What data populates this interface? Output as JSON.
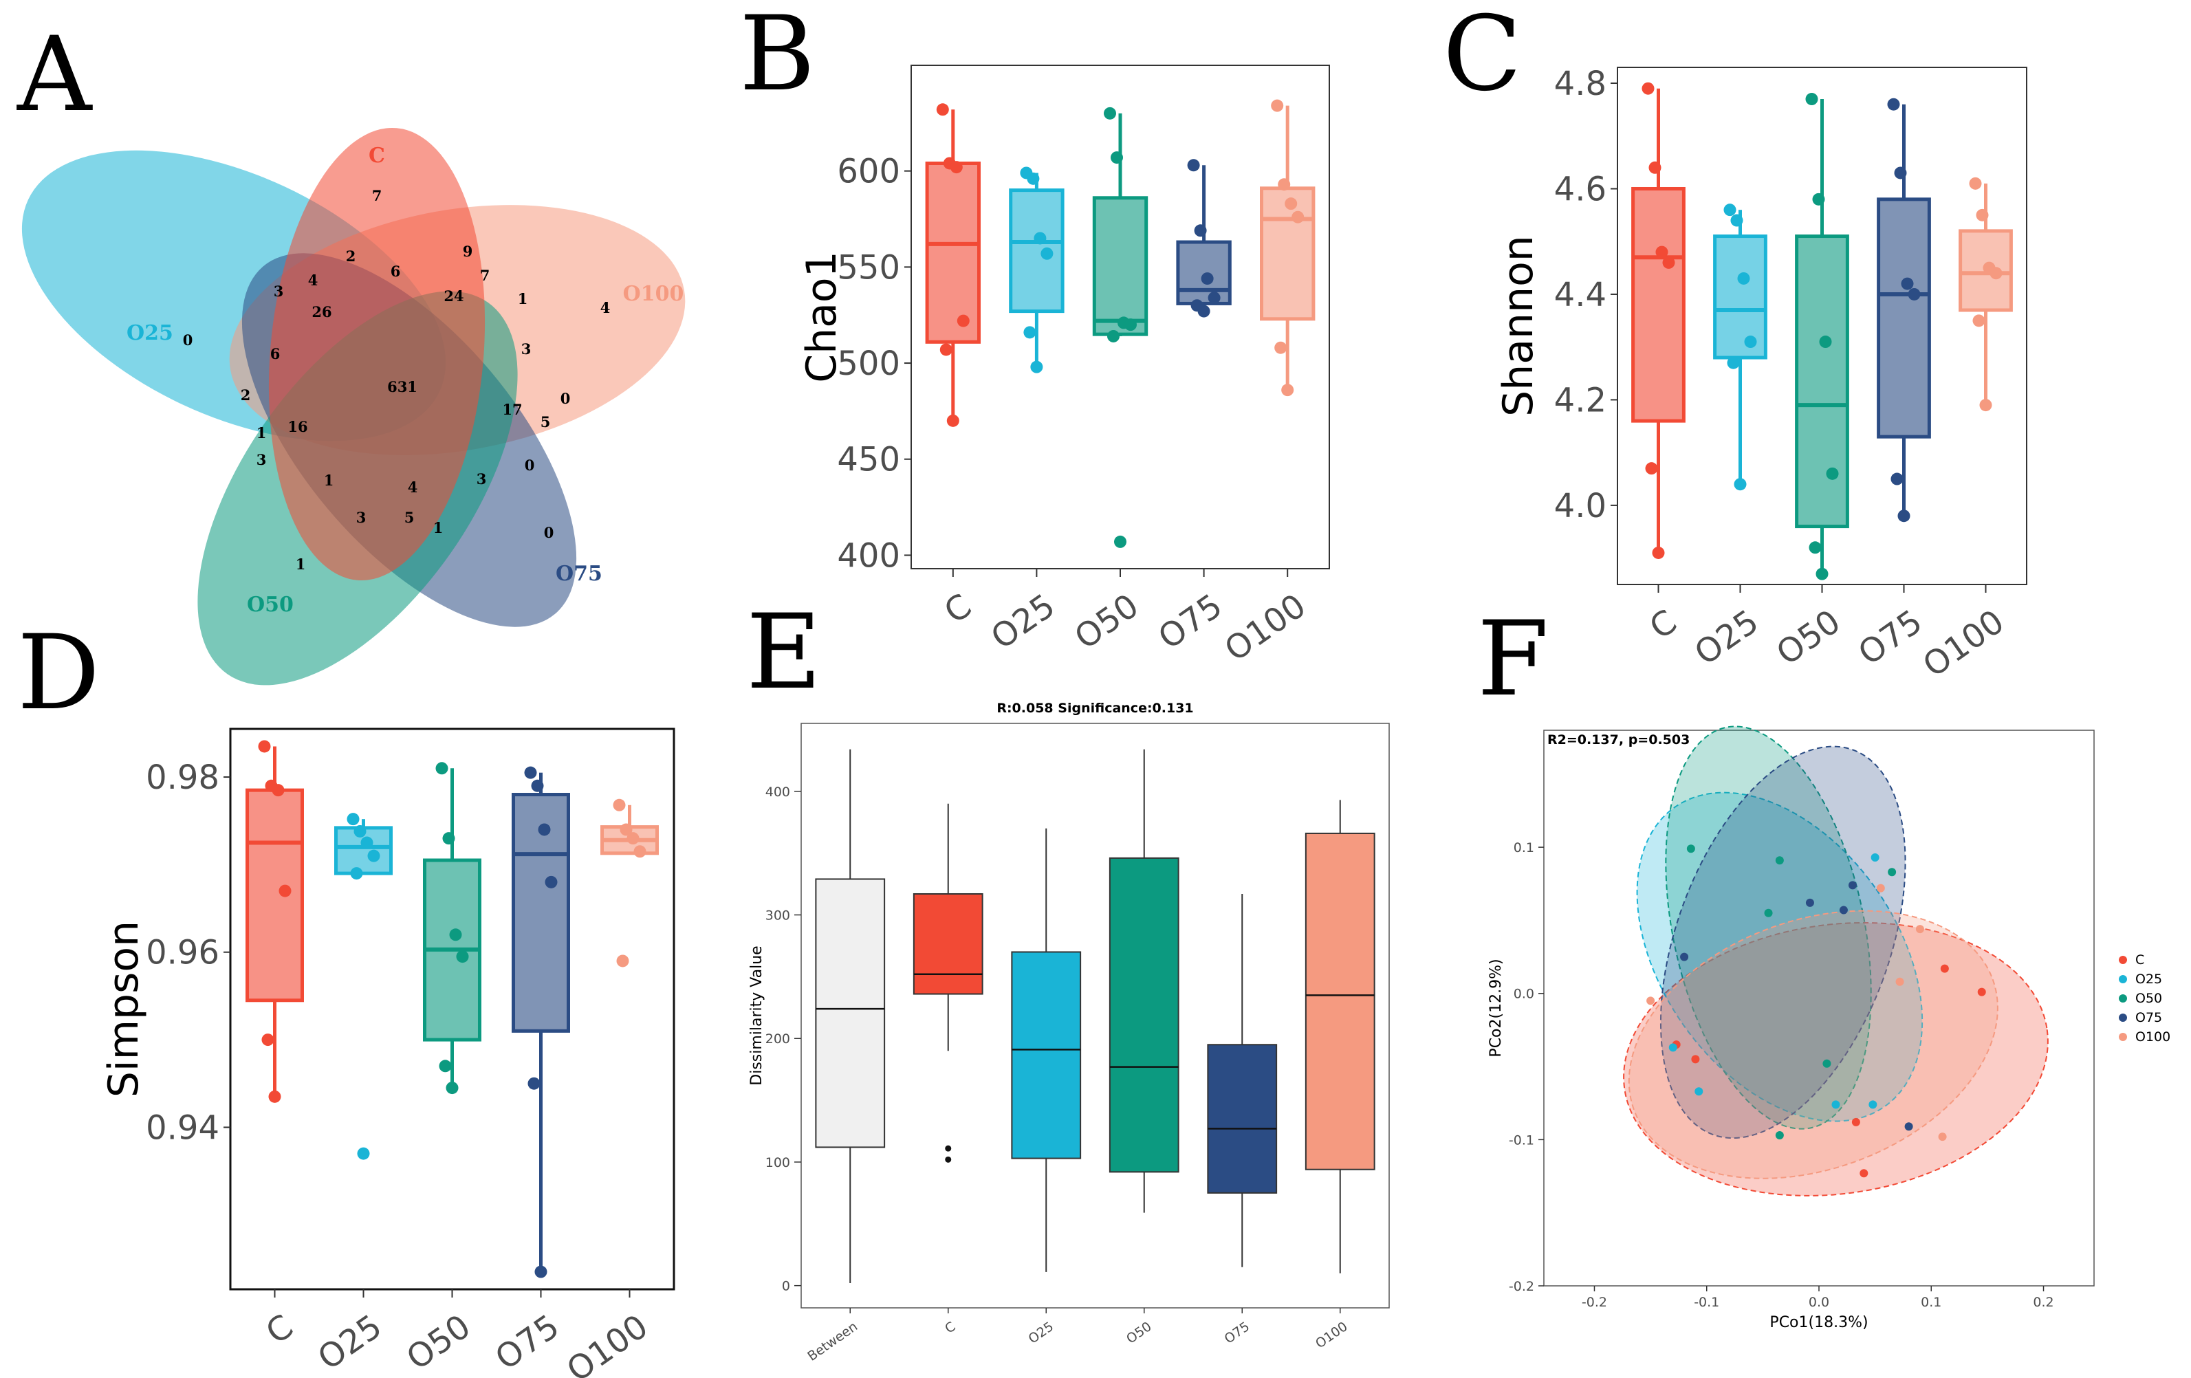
{
  "colors": {
    "C": "#f24a35",
    "O25": "#1ab4d6",
    "O50": "#0c9a80",
    "O75": "#2b4c84",
    "O100": "#f59a80",
    "Between": "#f0f0f0"
  },
  "panel_labels": [
    "A",
    "B",
    "C",
    "D",
    "E",
    "F"
  ],
  "chart_data": [
    {
      "panel": "A",
      "type": "venn",
      "sets": [
        "C",
        "O25",
        "O50",
        "O75",
        "O100"
      ],
      "counts": [
        "7",
        "2",
        "6",
        "9",
        "7",
        "24",
        "1",
        "4",
        "3",
        "26",
        "0",
        "4",
        "3",
        "6",
        "631",
        "2",
        "1",
        "16",
        "17",
        "0",
        "5",
        "3",
        "1",
        "4",
        "3",
        "0",
        "3",
        "5",
        "1",
        "0",
        "1"
      ]
    },
    {
      "panel": "B",
      "type": "boxplot",
      "ylabel": "Chao1",
      "categories": [
        "C",
        "O25",
        "O50",
        "O75",
        "O100"
      ],
      "yticks": [
        400,
        450,
        500,
        550,
        600
      ],
      "ylim": [
        393,
        655
      ],
      "boxes": [
        {
          "group": "C",
          "lo": 470,
          "q1": 511,
          "med": 562,
          "q3": 604,
          "hi": 632,
          "pts": [
            632,
            604,
            602,
            522,
            507,
            470
          ]
        },
        {
          "group": "O25",
          "lo": 498,
          "q1": 527,
          "med": 563,
          "q3": 590,
          "hi": 599,
          "pts": [
            599,
            596,
            565,
            557,
            516,
            498
          ]
        },
        {
          "group": "O50",
          "lo": 514,
          "q1": 515,
          "med": 522,
          "q3": 586,
          "hi": 630,
          "pts": [
            630,
            607,
            521,
            520,
            514,
            407
          ]
        },
        {
          "group": "O75",
          "lo": 527,
          "q1": 531,
          "med": 538,
          "q3": 563,
          "hi": 603,
          "pts": [
            603,
            569,
            544,
            534,
            530,
            527
          ]
        },
        {
          "group": "O100",
          "lo": 486,
          "q1": 523,
          "med": 575,
          "q3": 591,
          "hi": 634,
          "pts": [
            634,
            593,
            583,
            576,
            508,
            486
          ]
        }
      ]
    },
    {
      "panel": "C",
      "type": "boxplot",
      "ylabel": "Shannon",
      "categories": [
        "C",
        "O25",
        "O50",
        "O75",
        "O100"
      ],
      "yticks": [
        4.0,
        4.2,
        4.4,
        4.6,
        4.8
      ],
      "yticklabels": [
        "4.0",
        "4.2",
        "4.4",
        "4.6",
        "4.8"
      ],
      "ylim": [
        3.85,
        4.83
      ],
      "boxes": [
        {
          "group": "C",
          "lo": 3.91,
          "q1": 4.16,
          "med": 4.47,
          "q3": 4.6,
          "hi": 4.79,
          "pts": [
            4.79,
            4.64,
            4.48,
            4.46,
            4.07,
            3.91
          ]
        },
        {
          "group": "O25",
          "lo": 4.04,
          "q1": 4.28,
          "med": 4.37,
          "q3": 4.51,
          "hi": 4.56,
          "pts": [
            4.56,
            4.54,
            4.43,
            4.31,
            4.27,
            4.04
          ]
        },
        {
          "group": "O50",
          "lo": 3.87,
          "q1": 3.96,
          "med": 4.19,
          "q3": 4.51,
          "hi": 4.77,
          "pts": [
            4.77,
            4.58,
            4.31,
            4.06,
            3.92,
            3.87
          ]
        },
        {
          "group": "O75",
          "lo": 3.98,
          "q1": 4.13,
          "med": 4.4,
          "q3": 4.58,
          "hi": 4.76,
          "pts": [
            4.76,
            4.63,
            4.42,
            4.4,
            4.05,
            3.98
          ]
        },
        {
          "group": "O100",
          "lo": 4.19,
          "q1": 4.37,
          "med": 4.44,
          "q3": 4.52,
          "hi": 4.61,
          "pts": [
            4.61,
            4.55,
            4.45,
            4.44,
            4.35,
            4.19
          ]
        }
      ]
    },
    {
      "panel": "D",
      "type": "boxplot",
      "ylabel": "Simpson",
      "categories": [
        "C",
        "O25",
        "O50",
        "O75",
        "O100"
      ],
      "yticks": [
        0.94,
        0.96,
        0.98
      ],
      "yticklabels": [
        "0.94",
        "0.96",
        "0.98"
      ],
      "ylim": [
        0.9215,
        0.9855
      ],
      "boxes": [
        {
          "group": "C",
          "lo": 0.9435,
          "q1": 0.9545,
          "med": 0.9725,
          "q3": 0.9785,
          "hi": 0.9835,
          "pts": [
            0.9835,
            0.979,
            0.9785,
            0.967,
            0.95,
            0.9435
          ]
        },
        {
          "group": "O25",
          "lo": 0.969,
          "q1": 0.969,
          "med": 0.972,
          "q3": 0.9742,
          "hi": 0.9752,
          "pts": [
            0.9752,
            0.9738,
            0.9725,
            0.971,
            0.969,
            0.937
          ]
        },
        {
          "group": "O50",
          "lo": 0.9445,
          "q1": 0.95,
          "med": 0.9603,
          "q3": 0.9705,
          "hi": 0.981,
          "pts": [
            0.981,
            0.973,
            0.962,
            0.9595,
            0.947,
            0.9445
          ]
        },
        {
          "group": "O75",
          "lo": 0.9235,
          "q1": 0.951,
          "med": 0.9712,
          "q3": 0.978,
          "hi": 0.9805,
          "pts": [
            0.9805,
            0.979,
            0.974,
            0.968,
            0.945,
            0.9235
          ]
        },
        {
          "group": "O100",
          "lo": 0.9713,
          "q1": 0.9713,
          "med": 0.9728,
          "q3": 0.9743,
          "hi": 0.9768,
          "pts": [
            0.9768,
            0.974,
            0.973,
            0.9715,
            0.959
          ]
        }
      ]
    },
    {
      "panel": "E",
      "type": "boxplot",
      "title": "R:0.058   Significance:0.131",
      "ylabel": "Dissimilarity Value",
      "categories": [
        "Between",
        "C",
        "O25",
        "O50",
        "O75",
        "O100"
      ],
      "yticks": [
        0,
        100,
        200,
        300,
        400
      ],
      "ylim": [
        -18,
        455
      ],
      "boxes": [
        {
          "group": "Between",
          "lo": 2,
          "q1": 112,
          "med": 224,
          "q3": 329,
          "hi": 434,
          "pts": []
        },
        {
          "group": "C",
          "lo": 190,
          "q1": 236,
          "med": 252,
          "q3": 317,
          "hi": 390,
          "pts": [
            111,
            102
          ]
        },
        {
          "group": "O25",
          "lo": 11,
          "q1": 103,
          "med": 191,
          "q3": 270,
          "hi": 370,
          "pts": []
        },
        {
          "group": "O50",
          "lo": 59,
          "q1": 92,
          "med": 177,
          "q3": 346,
          "hi": 434,
          "pts": []
        },
        {
          "group": "O75",
          "lo": 15,
          "q1": 75,
          "med": 127,
          "q3": 195,
          "hi": 317,
          "pts": []
        },
        {
          "group": "O100",
          "lo": 10,
          "q1": 94,
          "med": 235,
          "q3": 366,
          "hi": 393,
          "pts": []
        }
      ]
    },
    {
      "panel": "F",
      "type": "scatter",
      "title": "R2=0.137, p=0.503",
      "xlabel": "PCo1(18.3%)",
      "ylabel": "PCo2(12.9%)",
      "xticks": [
        -0.2,
        -0.1,
        0.0,
        0.1,
        0.2
      ],
      "xticklabels": [
        "-0.2",
        "-0.1",
        "0.0",
        "0.1",
        "0.2"
      ],
      "yticks": [
        -0.2,
        -0.1,
        0.0,
        0.1
      ],
      "yticklabels": [
        "-0.2",
        "-0.1",
        "0.0",
        "0.1"
      ],
      "xlim": [
        -0.245,
        0.245
      ],
      "ylim": [
        -0.2,
        0.18
      ],
      "legend": [
        "C",
        "O25",
        "O50",
        "O75",
        "O100"
      ],
      "series": [
        {
          "name": "C",
          "points": [
            [
              0.112,
              0.017
            ],
            [
              0.145,
              0.001
            ],
            [
              -0.127,
              -0.035
            ],
            [
              -0.11,
              -0.045
            ],
            [
              0.033,
              -0.088
            ],
            [
              0.04,
              -0.123
            ]
          ]
        },
        {
          "name": "O25",
          "points": [
            [
              0.05,
              0.093
            ],
            [
              -0.13,
              -0.037
            ],
            [
              -0.107,
              -0.067
            ],
            [
              0.015,
              -0.076
            ],
            [
              0.048,
              -0.076
            ]
          ]
        },
        {
          "name": "O50",
          "points": [
            [
              -0.114,
              0.099
            ],
            [
              -0.035,
              0.091
            ],
            [
              0.065,
              0.083
            ],
            [
              -0.045,
              0.055
            ],
            [
              0.007,
              -0.048
            ],
            [
              -0.035,
              -0.097
            ]
          ]
        },
        {
          "name": "O75",
          "points": [
            [
              -0.12,
              0.025
            ],
            [
              -0.008,
              0.062
            ],
            [
              0.022,
              0.057
            ],
            [
              0.03,
              0.074
            ],
            [
              0.08,
              -0.091
            ]
          ]
        },
        {
          "name": "O100",
          "points": [
            [
              -0.15,
              -0.005
            ],
            [
              0.055,
              0.072
            ],
            [
              0.09,
              0.044
            ],
            [
              0.072,
              0.008
            ],
            [
              0.11,
              -0.098
            ]
          ]
        }
      ],
      "ellipses": [
        {
          "name": "C",
          "cx": 0.015,
          "cy": -0.045,
          "rx": 0.19,
          "ry": 0.092,
          "rot": -8
        },
        {
          "name": "O25",
          "cx": -0.035,
          "cy": 0.025,
          "rx": 0.105,
          "ry": 0.125,
          "rot": -35
        },
        {
          "name": "O50",
          "cx": -0.045,
          "cy": 0.045,
          "rx": 0.085,
          "ry": 0.14,
          "rot": -12
        },
        {
          "name": "O75",
          "cx": -0.032,
          "cy": 0.035,
          "rx": 0.095,
          "ry": 0.14,
          "rot": 20
        },
        {
          "name": "O100",
          "cx": -0.005,
          "cy": -0.035,
          "rx": 0.17,
          "ry": 0.085,
          "rot": -20
        }
      ]
    }
  ]
}
